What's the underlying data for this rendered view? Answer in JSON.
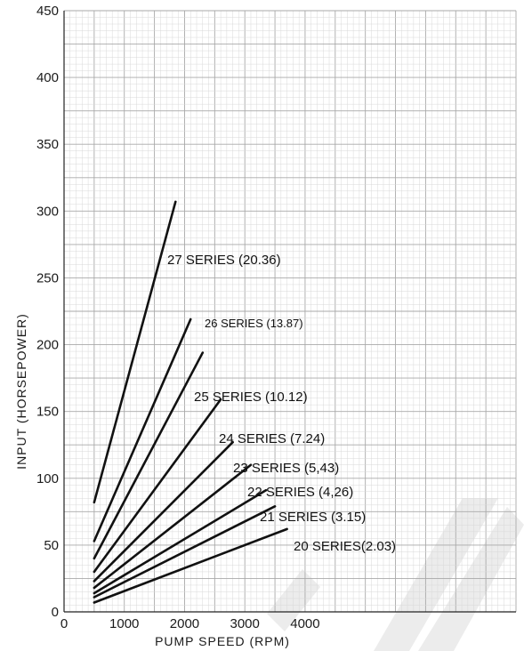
{
  "chart_data": {
    "type": "line",
    "title": "",
    "xlabel": "PUMP SPEED (RPM)",
    "ylabel": "INPUT (HORSEPOWER)",
    "xlim": [
      0,
      7500
    ],
    "ylim": [
      0,
      450
    ],
    "xticks": [
      0,
      1000,
      2000,
      3000,
      4000
    ],
    "xtick_labels": [
      "0",
      "1000",
      "2000",
      "3000",
      "4000"
    ],
    "yticks": [
      0,
      50,
      100,
      150,
      200,
      250,
      300,
      350,
      400,
      450
    ],
    "ytick_labels": [
      "0",
      "50",
      "100",
      "150",
      "200",
      "250",
      "300",
      "350",
      "400",
      "450"
    ],
    "grid": true,
    "legend": "none",
    "series": [
      {
        "name": "27 SERIES (20.36)",
        "label_text": "27 SERIES (20.36)",
        "x": [
          500,
          1850
        ],
        "y": [
          82,
          307
        ]
      },
      {
        "name": "26 SERIES (13.87)",
        "label_text": "26 SERIES (13.87)",
        "x": [
          500,
          2100
        ],
        "y": [
          53,
          219
        ]
      },
      {
        "name": "",
        "label_text": "",
        "x": [
          500,
          2300
        ],
        "y": [
          40,
          194
        ]
      },
      {
        "name": "25 SERIES (10.12)",
        "label_text": "25 SERIES (10.12)",
        "x": [
          500,
          2600
        ],
        "y": [
          30,
          159
        ]
      },
      {
        "name": "24 SERIES (7.24)",
        "label_text": "24 SERIES (7.24)",
        "x": [
          500,
          2800
        ],
        "y": [
          23,
          127
        ]
      },
      {
        "name": "23 SERIES (5.43)",
        "label_text": "23 SERIES (5,43)",
        "x": [
          500,
          3100
        ],
        "y": [
          18,
          110
        ]
      },
      {
        "name": "22 SERIES (4.26)",
        "label_text": "22 SERIES (4,26)",
        "x": [
          500,
          3350
        ],
        "y": [
          14,
          91
        ]
      },
      {
        "name": "21 SERIES (3.15)",
        "label_text": "21 SERIES (3.15)",
        "x": [
          500,
          3500
        ],
        "y": [
          11,
          79
        ]
      },
      {
        "name": "20 SERIES (2.03)",
        "label_text": "20 SERIES(2.03)",
        "x": [
          500,
          3700
        ],
        "y": [
          7,
          62
        ]
      }
    ]
  }
}
